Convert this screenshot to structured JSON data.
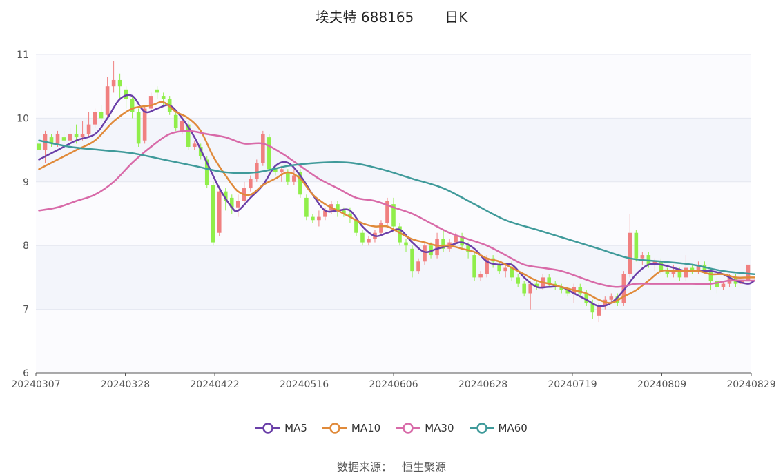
{
  "header": {
    "stock": "埃夫特 688165",
    "period": "日K"
  },
  "source": {
    "label": "数据来源：",
    "name": "恒生聚源"
  },
  "colors": {
    "up": "#f08080",
    "down": "#90ee4a",
    "MA5": "#6a3fa8",
    "MA10": "#e08a3a",
    "MA30": "#d86aa8",
    "MA60": "#3f9a9a"
  },
  "chart_data": {
    "type": "candlestick",
    "ylim": [
      6,
      11
    ],
    "yticks": [
      6,
      7,
      8,
      9,
      10,
      11
    ],
    "xticks": [
      "20240307",
      "20240328",
      "20240422",
      "20240516",
      "20240606",
      "20240628",
      "20240719",
      "20240809",
      "20240829"
    ],
    "legend": [
      "MA5",
      "MA10",
      "MA30",
      "MA60"
    ],
    "candles": [
      [
        9.6,
        9.5,
        9.85,
        9.45
      ],
      [
        9.5,
        9.75,
        9.8,
        9.3
      ],
      [
        9.7,
        9.6,
        9.75,
        9.55
      ],
      [
        9.6,
        9.75,
        9.8,
        9.55
      ],
      [
        9.7,
        9.65,
        9.8,
        9.6
      ],
      [
        9.65,
        9.75,
        9.85,
        9.6
      ],
      [
        9.75,
        9.7,
        9.9,
        9.6
      ],
      [
        9.7,
        9.75,
        9.95,
        9.65
      ],
      [
        9.75,
        9.9,
        10.1,
        9.7
      ],
      [
        9.9,
        10.1,
        10.15,
        9.85
      ],
      [
        10.1,
        10.0,
        10.2,
        9.95
      ],
      [
        10.05,
        10.5,
        10.65,
        10.0
      ],
      [
        10.5,
        10.6,
        10.9,
        10.4
      ],
      [
        10.6,
        10.5,
        10.7,
        10.3
      ],
      [
        10.45,
        10.3,
        10.5,
        10.15
      ],
      [
        10.3,
        10.1,
        10.35,
        10.0
      ],
      [
        10.1,
        9.6,
        10.15,
        9.55
      ],
      [
        9.65,
        10.15,
        10.2,
        9.6
      ],
      [
        10.15,
        10.35,
        10.4,
        10.1
      ],
      [
        10.45,
        10.4,
        10.5,
        10.3
      ],
      [
        10.35,
        10.3,
        10.4,
        10.2
      ],
      [
        10.3,
        10.1,
        10.35,
        10.05
      ],
      [
        10.05,
        9.85,
        10.1,
        9.8
      ],
      [
        9.8,
        9.95,
        10.0,
        9.75
      ],
      [
        9.9,
        9.55,
        9.95,
        9.5
      ],
      [
        9.55,
        9.6,
        9.65,
        9.5
      ],
      [
        9.55,
        9.4,
        9.6,
        9.35
      ],
      [
        9.35,
        8.95,
        9.4,
        8.9
      ],
      [
        8.95,
        8.05,
        9.0,
        8.0
      ],
      [
        8.2,
        8.85,
        8.9,
        8.15
      ],
      [
        8.85,
        8.7,
        8.9,
        8.55
      ],
      [
        8.75,
        8.6,
        8.8,
        8.5
      ],
      [
        8.6,
        8.7,
        8.8,
        8.45
      ],
      [
        8.7,
        8.9,
        9.0,
        8.65
      ],
      [
        8.9,
        9.05,
        9.1,
        8.85
      ],
      [
        9.05,
        9.3,
        9.35,
        9.0
      ],
      [
        9.3,
        9.75,
        9.8,
        9.25
      ],
      [
        9.7,
        9.2,
        9.75,
        9.15
      ],
      [
        9.2,
        9.15,
        9.25,
        9.1
      ],
      [
        9.15,
        9.2,
        9.25,
        9.0
      ],
      [
        9.15,
        9.0,
        9.2,
        8.95
      ],
      [
        9.0,
        9.1,
        9.2,
        8.95
      ],
      [
        9.15,
        8.8,
        9.2,
        8.75
      ],
      [
        8.75,
        8.45,
        8.8,
        8.4
      ],
      [
        8.45,
        8.4,
        8.5,
        8.35
      ],
      [
        8.4,
        8.45,
        8.55,
        8.3
      ],
      [
        8.45,
        8.55,
        8.6,
        8.4
      ],
      [
        8.55,
        8.65,
        8.7,
        8.5
      ],
      [
        8.65,
        8.55,
        8.7,
        8.45
      ],
      [
        8.55,
        8.5,
        8.6,
        8.45
      ],
      [
        8.5,
        8.45,
        8.6,
        8.35
      ],
      [
        8.4,
        8.2,
        8.45,
        8.15
      ],
      [
        8.2,
        8.05,
        8.25,
        8.0
      ],
      [
        8.05,
        8.1,
        8.15,
        8.0
      ],
      [
        8.1,
        8.2,
        8.25,
        8.05
      ],
      [
        8.2,
        8.35,
        8.4,
        8.15
      ],
      [
        8.35,
        8.7,
        8.75,
        8.3
      ],
      [
        8.65,
        8.3,
        8.75,
        8.25
      ],
      [
        8.3,
        8.05,
        8.35,
        8.0
      ],
      [
        8.05,
        8.0,
        8.1,
        7.9
      ],
      [
        7.95,
        7.6,
        8.0,
        7.5
      ],
      [
        7.6,
        7.75,
        7.8,
        7.55
      ],
      [
        7.75,
        8.0,
        8.05,
        7.7
      ],
      [
        8.0,
        7.85,
        8.05,
        7.8
      ],
      [
        7.85,
        8.1,
        8.2,
        7.8
      ],
      [
        8.1,
        7.95,
        8.25,
        7.9
      ],
      [
        7.95,
        8.05,
        8.1,
        7.9
      ],
      [
        8.05,
        8.15,
        8.2,
        8.0
      ],
      [
        8.15,
        8.0,
        8.2,
        7.95
      ],
      [
        8.0,
        7.9,
        8.05,
        7.8
      ],
      [
        7.85,
        7.5,
        7.9,
        7.45
      ],
      [
        7.5,
        7.55,
        7.6,
        7.45
      ],
      [
        7.55,
        7.8,
        7.85,
        7.5
      ],
      [
        7.8,
        7.75,
        7.85,
        7.65
      ],
      [
        7.7,
        7.6,
        7.75,
        7.55
      ],
      [
        7.6,
        7.65,
        7.7,
        7.5
      ],
      [
        7.65,
        7.5,
        7.75,
        7.45
      ],
      [
        7.5,
        7.4,
        7.55,
        7.35
      ],
      [
        7.4,
        7.25,
        7.45,
        7.2
      ],
      [
        7.25,
        7.4,
        7.45,
        7.0
      ],
      [
        7.4,
        7.35,
        7.45,
        7.3
      ],
      [
        7.35,
        7.5,
        7.55,
        7.3
      ],
      [
        7.5,
        7.4,
        7.55,
        7.35
      ],
      [
        7.4,
        7.35,
        7.45,
        7.3
      ],
      [
        7.35,
        7.3,
        7.4,
        7.25
      ],
      [
        7.3,
        7.25,
        7.35,
        7.2
      ],
      [
        7.25,
        7.35,
        7.4,
        7.1
      ],
      [
        7.35,
        7.25,
        7.4,
        7.2
      ],
      [
        7.25,
        7.1,
        7.3,
        7.05
      ],
      [
        7.1,
        6.95,
        7.15,
        6.85
      ],
      [
        6.9,
        7.05,
        7.1,
        6.8
      ],
      [
        7.05,
        7.15,
        7.2,
        7.0
      ],
      [
        7.15,
        7.2,
        7.25,
        7.1
      ],
      [
        7.2,
        7.1,
        7.25,
        7.05
      ],
      [
        7.1,
        7.55,
        7.6,
        7.05
      ],
      [
        7.55,
        8.2,
        8.5,
        7.5
      ],
      [
        8.2,
        7.8,
        8.25,
        7.75
      ],
      [
        7.8,
        7.85,
        7.9,
        7.7
      ],
      [
        7.85,
        7.7,
        7.9,
        7.65
      ],
      [
        7.7,
        7.75,
        7.8,
        7.6
      ],
      [
        7.75,
        7.6,
        7.8,
        7.55
      ],
      [
        7.6,
        7.55,
        7.65,
        7.5
      ],
      [
        7.55,
        7.6,
        7.7,
        7.5
      ],
      [
        7.6,
        7.5,
        7.65,
        7.45
      ],
      [
        7.5,
        7.65,
        7.85,
        7.45
      ],
      [
        7.65,
        7.6,
        7.7,
        7.55
      ],
      [
        7.6,
        7.7,
        7.75,
        7.55
      ],
      [
        7.7,
        7.6,
        7.75,
        7.55
      ],
      [
        7.6,
        7.45,
        7.65,
        7.3
      ],
      [
        7.45,
        7.35,
        7.5,
        7.25
      ],
      [
        7.35,
        7.4,
        7.45,
        7.3
      ],
      [
        7.4,
        7.5,
        7.55,
        7.35
      ],
      [
        7.5,
        7.4,
        7.55,
        7.35
      ],
      [
        7.4,
        7.45,
        7.5,
        7.3
      ],
      [
        7.45,
        7.7,
        7.8,
        7.4
      ]
    ],
    "series": [
      {
        "name": "MA5",
        "points": [
          [
            0,
            9.35
          ],
          [
            3,
            9.5
          ],
          [
            6,
            9.65
          ],
          [
            9,
            9.75
          ],
          [
            11,
            10.0
          ],
          [
            13,
            10.3
          ],
          [
            15,
            10.35
          ],
          [
            17,
            10.1
          ],
          [
            19,
            10.15
          ],
          [
            21,
            10.2
          ],
          [
            23,
            10.0
          ],
          [
            25,
            9.7
          ],
          [
            27,
            9.3
          ],
          [
            29,
            8.9
          ],
          [
            31,
            8.6
          ],
          [
            32,
            8.55
          ],
          [
            34,
            8.75
          ],
          [
            36,
            8.95
          ],
          [
            38,
            9.25
          ],
          [
            40,
            9.3
          ],
          [
            42,
            9.1
          ],
          [
            44,
            8.8
          ],
          [
            46,
            8.55
          ],
          [
            48,
            8.55
          ],
          [
            50,
            8.55
          ],
          [
            52,
            8.3
          ],
          [
            54,
            8.15
          ],
          [
            56,
            8.2
          ],
          [
            58,
            8.25
          ],
          [
            60,
            8.05
          ],
          [
            62,
            7.9
          ],
          [
            64,
            7.95
          ],
          [
            66,
            8.0
          ],
          [
            68,
            8.05
          ],
          [
            70,
            7.95
          ],
          [
            72,
            7.75
          ],
          [
            74,
            7.7
          ],
          [
            76,
            7.7
          ],
          [
            78,
            7.5
          ],
          [
            80,
            7.35
          ],
          [
            82,
            7.35
          ],
          [
            84,
            7.35
          ],
          [
            86,
            7.25
          ],
          [
            88,
            7.15
          ],
          [
            90,
            7.05
          ],
          [
            92,
            7.1
          ],
          [
            94,
            7.3
          ],
          [
            96,
            7.55
          ],
          [
            98,
            7.7
          ],
          [
            100,
            7.7
          ],
          [
            102,
            7.65
          ],
          [
            104,
            7.6
          ],
          [
            106,
            7.6
          ],
          [
            108,
            7.6
          ],
          [
            110,
            7.55
          ],
          [
            112,
            7.45
          ],
          [
            114,
            7.4
          ],
          [
            115,
            7.45
          ]
        ]
      },
      {
        "name": "MA10",
        "points": [
          [
            0,
            9.2
          ],
          [
            3,
            9.35
          ],
          [
            6,
            9.5
          ],
          [
            9,
            9.65
          ],
          [
            12,
            9.95
          ],
          [
            15,
            10.15
          ],
          [
            18,
            10.2
          ],
          [
            20,
            10.25
          ],
          [
            22,
            10.1
          ],
          [
            24,
            10.0
          ],
          [
            26,
            9.8
          ],
          [
            28,
            9.4
          ],
          [
            30,
            9.1
          ],
          [
            32,
            8.85
          ],
          [
            34,
            8.8
          ],
          [
            36,
            8.95
          ],
          [
            38,
            9.05
          ],
          [
            40,
            9.15
          ],
          [
            42,
            9.05
          ],
          [
            44,
            8.8
          ],
          [
            46,
            8.65
          ],
          [
            48,
            8.55
          ],
          [
            50,
            8.45
          ],
          [
            52,
            8.35
          ],
          [
            54,
            8.3
          ],
          [
            56,
            8.3
          ],
          [
            58,
            8.2
          ],
          [
            60,
            8.1
          ],
          [
            62,
            8.05
          ],
          [
            64,
            8.0
          ],
          [
            66,
            8.0
          ],
          [
            68,
            7.95
          ],
          [
            70,
            7.9
          ],
          [
            72,
            7.8
          ],
          [
            74,
            7.75
          ],
          [
            76,
            7.65
          ],
          [
            78,
            7.55
          ],
          [
            80,
            7.45
          ],
          [
            82,
            7.4
          ],
          [
            84,
            7.35
          ],
          [
            86,
            7.3
          ],
          [
            88,
            7.25
          ],
          [
            90,
            7.15
          ],
          [
            92,
            7.1
          ],
          [
            94,
            7.2
          ],
          [
            96,
            7.3
          ],
          [
            98,
            7.45
          ],
          [
            100,
            7.6
          ],
          [
            102,
            7.6
          ],
          [
            104,
            7.6
          ],
          [
            106,
            7.6
          ],
          [
            108,
            7.55
          ],
          [
            110,
            7.55
          ],
          [
            112,
            7.5
          ],
          [
            114,
            7.5
          ],
          [
            115,
            7.5
          ]
        ]
      },
      {
        "name": "MA30",
        "points": [
          [
            0,
            8.55
          ],
          [
            3,
            8.6
          ],
          [
            6,
            8.7
          ],
          [
            9,
            8.8
          ],
          [
            12,
            9.0
          ],
          [
            15,
            9.3
          ],
          [
            18,
            9.55
          ],
          [
            21,
            9.75
          ],
          [
            24,
            9.8
          ],
          [
            27,
            9.75
          ],
          [
            30,
            9.7
          ],
          [
            33,
            9.6
          ],
          [
            36,
            9.6
          ],
          [
            39,
            9.45
          ],
          [
            42,
            9.25
          ],
          [
            45,
            9.05
          ],
          [
            48,
            8.9
          ],
          [
            51,
            8.75
          ],
          [
            54,
            8.7
          ],
          [
            57,
            8.6
          ],
          [
            60,
            8.5
          ],
          [
            63,
            8.35
          ],
          [
            66,
            8.2
          ],
          [
            69,
            8.1
          ],
          [
            72,
            8.0
          ],
          [
            75,
            7.85
          ],
          [
            78,
            7.7
          ],
          [
            81,
            7.65
          ],
          [
            84,
            7.6
          ],
          [
            87,
            7.5
          ],
          [
            90,
            7.4
          ],
          [
            93,
            7.35
          ],
          [
            96,
            7.4
          ],
          [
            99,
            7.4
          ],
          [
            102,
            7.4
          ],
          [
            105,
            7.4
          ],
          [
            108,
            7.4
          ],
          [
            111,
            7.45
          ],
          [
            114,
            7.45
          ],
          [
            115,
            7.45
          ]
        ]
      },
      {
        "name": "MA60",
        "points": [
          [
            0,
            9.65
          ],
          [
            5,
            9.55
          ],
          [
            10,
            9.5
          ],
          [
            15,
            9.45
          ],
          [
            20,
            9.35
          ],
          [
            25,
            9.25
          ],
          [
            30,
            9.15
          ],
          [
            35,
            9.15
          ],
          [
            40,
            9.25
          ],
          [
            45,
            9.3
          ],
          [
            50,
            9.3
          ],
          [
            55,
            9.2
          ],
          [
            60,
            9.05
          ],
          [
            65,
            8.9
          ],
          [
            70,
            8.65
          ],
          [
            75,
            8.4
          ],
          [
            80,
            8.25
          ],
          [
            85,
            8.1
          ],
          [
            90,
            7.95
          ],
          [
            95,
            7.8
          ],
          [
            100,
            7.75
          ],
          [
            105,
            7.7
          ],
          [
            110,
            7.6
          ],
          [
            115,
            7.55
          ]
        ]
      }
    ]
  }
}
